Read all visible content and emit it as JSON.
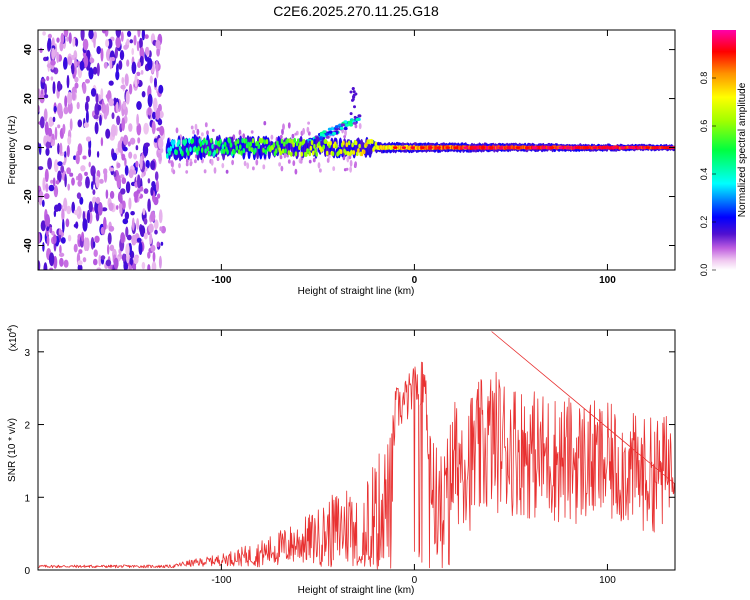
{
  "title": "C2E6.2025.270.11.25.G18",
  "chart_data": [
    {
      "type": "heatmap",
      "xlabel": "Height of straight line (km)",
      "ylabel": "Frequency (Hz)",
      "xlim": [
        -195,
        135
      ],
      "ylim": [
        -50,
        48
      ],
      "xticks": [
        -100,
        0,
        100
      ],
      "yticks": [
        -40,
        -20,
        0,
        20,
        40
      ],
      "colorbar": {
        "label": "Normalized spectral amplitude",
        "range": [
          0,
          1
        ],
        "ticks": [
          "0.0",
          "0.2",
          "0.4",
          "0.6",
          "0.8"
        ],
        "colors": [
          "#ffffff",
          "#e8d8f8",
          "#b07ae8",
          "#6a1fd8",
          "#0000ff",
          "#00ffff",
          "#00ff00",
          "#ffff00",
          "#ff8000",
          "#ff0000",
          "#ff00aa"
        ]
      },
      "regions": [
        {
          "name": "noise",
          "x": [
            -195,
            -130
          ],
          "freq": [
            -50,
            48
          ],
          "amplitude": 0.08
        },
        {
          "name": "signal-track",
          "x": [
            -128,
            135
          ],
          "freq_center": 0,
          "freq_halfwidth": [
            5,
            2
          ],
          "amplitude": [
            0.4,
            0.9
          ]
        },
        {
          "name": "upper-branch",
          "x": [
            -60,
            -28
          ],
          "freq": [
            0,
            12
          ],
          "amplitude": 0.35
        },
        {
          "name": "spike",
          "x": [
            -33,
            -30
          ],
          "freq": [
            12,
            25
          ],
          "amplitude": 0.15
        }
      ]
    },
    {
      "type": "line",
      "xlabel": "Height of straight line (km)",
      "ylabel": "SNR (10 * v/v)",
      "multiplier": "(x10",
      "multiplier_exp": "4",
      "multiplier_close": ")",
      "xlim": [
        -195,
        135
      ],
      "ylim": [
        0,
        3.3
      ],
      "xticks": [
        -100,
        0,
        100
      ],
      "yticks": [
        0,
        1,
        2,
        3
      ],
      "color": "#e83030",
      "series": [
        {
          "name": "SNR",
          "x": [
            -195,
            -130,
            -125,
            -120,
            -100,
            -80,
            -70,
            -60,
            -50,
            -40,
            -30,
            -25,
            -20,
            -12,
            -10,
            -5,
            0,
            5,
            10,
            15,
            20,
            25,
            30,
            40,
            50,
            60,
            70,
            80,
            90,
            100,
            110,
            120,
            130,
            135
          ],
          "level": [
            0.05,
            0.05,
            0.05,
            0.08,
            0.14,
            0.22,
            0.3,
            0.38,
            0.45,
            0.55,
            0.68,
            0.72,
            0.8,
            1.0,
            2.2,
            2.3,
            2.5,
            2.6,
            1.0,
            0.8,
            1.4,
            1.6,
            1.5,
            1.8,
            1.7,
            1.6,
            1.55,
            1.5,
            1.5,
            1.45,
            1.4,
            1.3,
            1.35,
            1.7
          ],
          "spread": [
            0.02,
            0.02,
            0.02,
            0.04,
            0.08,
            0.18,
            0.25,
            0.3,
            0.4,
            0.55,
            0.65,
            0.7,
            0.75,
            0.9,
            0.3,
            0.35,
            0.3,
            0.3,
            0.8,
            0.8,
            0.9,
            0.95,
            1.0,
            1.0,
            0.95,
            0.9,
            0.9,
            0.9,
            0.85,
            0.85,
            0.8,
            0.8,
            0.8,
            0.6
          ],
          "peak": 3.28
        }
      ]
    }
  ]
}
